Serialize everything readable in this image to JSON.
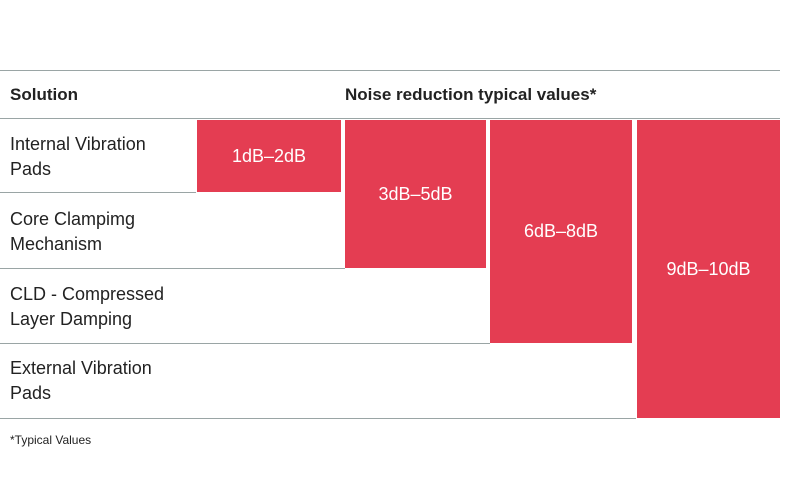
{
  "header": {
    "solution": "Solution",
    "values": "Noise reduction typical values*"
  },
  "rows": [
    {
      "solution": "Internal Vibration Pads",
      "value": "1dB–2dB"
    },
    {
      "solution": "Core Clampimg Mechanism",
      "value": "3dB–5dB"
    },
    {
      "solution": "CLD - Compressed Layer Damping",
      "value": "6dB–8dB"
    },
    {
      "solution": "External Vibration Pads",
      "value": "9dB–10dB"
    }
  ],
  "footnote": "*Typical Values"
}
